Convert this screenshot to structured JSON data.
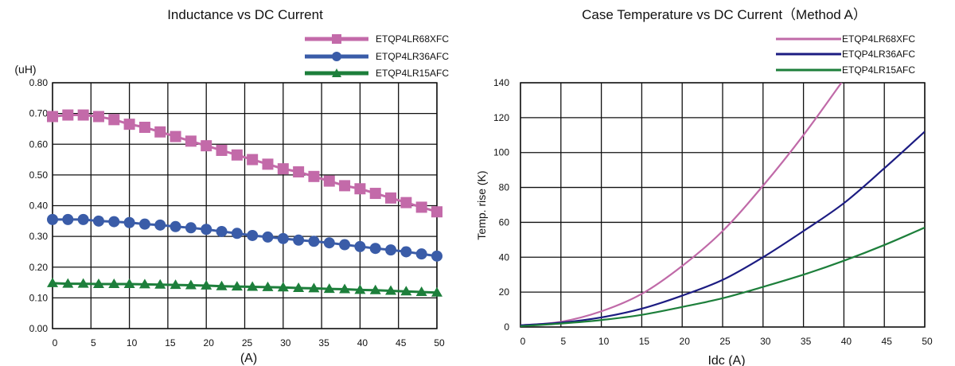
{
  "chart_data": [
    {
      "type": "line",
      "title": "Inductance vs DC Current",
      "ylabel": "(uH)",
      "xlabel": "(A)",
      "xlim": [
        0,
        50
      ],
      "ylim": [
        0,
        0.8
      ],
      "xticks": [
        "0",
        "5",
        "10",
        "15",
        "20",
        "25",
        "30",
        "35",
        "40",
        "45",
        "50"
      ],
      "yticks": [
        "0.00",
        "0.10",
        "0.20",
        "0.30",
        "0.40",
        "0.50",
        "0.60",
        "0.70",
        "0.80"
      ],
      "grid": true,
      "legend": "top-right",
      "x": [
        0,
        2,
        4,
        6,
        8,
        10,
        12,
        14,
        16,
        18,
        20,
        22,
        24,
        26,
        28,
        30,
        32,
        34,
        36,
        38,
        40,
        42,
        44,
        46,
        48,
        50
      ],
      "series": [
        {
          "name": "ETQP4LR68XFC",
          "color": "#c36aa9",
          "marker": "square",
          "values": [
            0.69,
            0.695,
            0.695,
            0.69,
            0.68,
            0.665,
            0.655,
            0.64,
            0.625,
            0.61,
            0.595,
            0.58,
            0.565,
            0.55,
            0.535,
            0.52,
            0.51,
            0.495,
            0.48,
            0.465,
            0.455,
            0.44,
            0.425,
            0.41,
            0.395,
            0.38
          ]
        },
        {
          "name": "ETQP4LR36AFC",
          "color": "#3a5ca8",
          "marker": "circle",
          "values": [
            0.355,
            0.355,
            0.355,
            0.35,
            0.348,
            0.345,
            0.34,
            0.337,
            0.332,
            0.328,
            0.323,
            0.316,
            0.31,
            0.303,
            0.298,
            0.293,
            0.288,
            0.284,
            0.279,
            0.273,
            0.267,
            0.261,
            0.256,
            0.25,
            0.243,
            0.236
          ]
        },
        {
          "name": "ETQP4LR15AFC",
          "color": "#1d7f3b",
          "marker": "triangle",
          "values": [
            0.148,
            0.146,
            0.146,
            0.145,
            0.145,
            0.145,
            0.144,
            0.143,
            0.142,
            0.141,
            0.14,
            0.138,
            0.137,
            0.136,
            0.135,
            0.134,
            0.132,
            0.131,
            0.129,
            0.128,
            0.126,
            0.125,
            0.123,
            0.121,
            0.119,
            0.117
          ]
        }
      ]
    },
    {
      "type": "line",
      "title": "Case Temperature vs DC Current（Method A）",
      "ylabel": "Temp. rise (K)",
      "xlabel": "Idc (A)",
      "xlim": [
        0,
        50
      ],
      "ylim": [
        0,
        140
      ],
      "xticks": [
        "0",
        "5",
        "10",
        "15",
        "20",
        "25",
        "30",
        "35",
        "40",
        "45",
        "50"
      ],
      "yticks": [
        "0",
        "20",
        "40",
        "60",
        "80",
        "100",
        "120",
        "140"
      ],
      "grid": true,
      "legend": "top-right",
      "x": [
        0,
        5,
        10,
        15,
        20,
        25,
        30,
        35,
        40,
        45,
        50
      ],
      "series": [
        {
          "name": "ETQP4LR68XFC",
          "color": "#c06aa8",
          "values": [
            1,
            3,
            9,
            19,
            35,
            55,
            81,
            110,
            142,
            null,
            null
          ]
        },
        {
          "name": "ETQP4LR36AFC",
          "color": "#1c1c82",
          "values": [
            1,
            2.5,
            5.5,
            10.5,
            18,
            27,
            40,
            55,
            71,
            91,
            112
          ]
        },
        {
          "name": "ETQP4LR15AFC",
          "color": "#1d7f3b",
          "values": [
            0.5,
            2,
            4,
            7,
            11.5,
            16.5,
            23,
            30,
            38,
            47,
            57
          ]
        }
      ]
    }
  ]
}
